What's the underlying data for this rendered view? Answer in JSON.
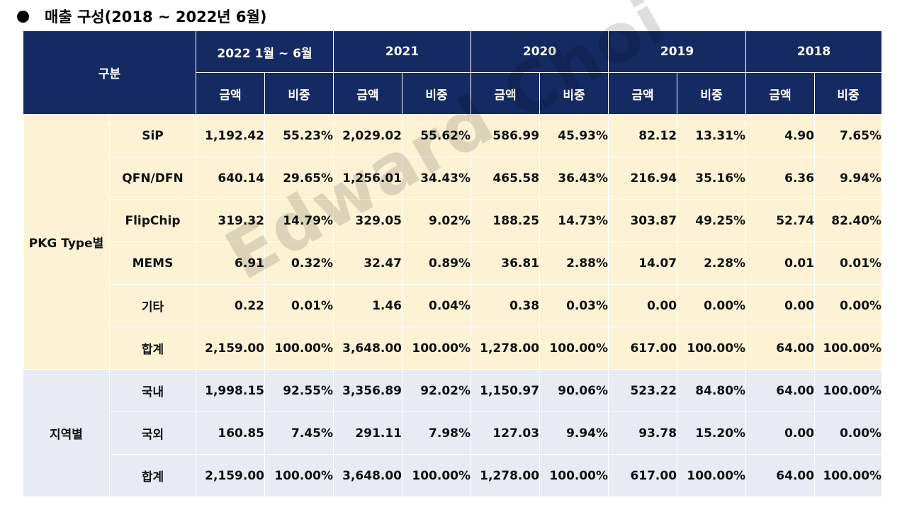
{
  "title": "매출 구성(2018 ~ 2022년 6월)",
  "watermark": "Edward Choi",
  "header": {
    "category": "구분",
    "periods": [
      "2022 1월 ~ 6월",
      "2021",
      "2020",
      "2019",
      "2018"
    ],
    "amount_label": "금액",
    "share_label": "비중"
  },
  "groups": [
    {
      "label": "PKG Type별",
      "rows": [
        {
          "item": "SiP",
          "values": [
            "1,192.42",
            "55.23%",
            "2,029.02",
            "55.62%",
            "586.99",
            "45.93%",
            "82.12",
            "13.31%",
            "4.90",
            "7.65%"
          ]
        },
        {
          "item": "QFN/DFN",
          "values": [
            "640.14",
            "29.65%",
            "1,256.01",
            "34.43%",
            "465.58",
            "36.43%",
            "216.94",
            "35.16%",
            "6.36",
            "9.94%"
          ]
        },
        {
          "item": "FlipChip",
          "values": [
            "319.32",
            "14.79%",
            "329.05",
            "9.02%",
            "188.25",
            "14.73%",
            "303.87",
            "49.25%",
            "52.74",
            "82.40%"
          ]
        },
        {
          "item": "MEMS",
          "values": [
            "6.91",
            "0.32%",
            "32.47",
            "0.89%",
            "36.81",
            "2.88%",
            "14.07",
            "2.28%",
            "0.01",
            "0.01%"
          ]
        },
        {
          "item": "기타",
          "values": [
            "0.22",
            "0.01%",
            "1.46",
            "0.04%",
            "0.38",
            "0.03%",
            "0.00",
            "0.00%",
            "0.00",
            "0.00%"
          ]
        },
        {
          "item": "합계",
          "values": [
            "2,159.00",
            "100.00%",
            "3,648.00",
            "100.00%",
            "1,278.00",
            "100.00%",
            "617.00",
            "100.00%",
            "64.00",
            "100.00%"
          ]
        }
      ]
    },
    {
      "label": "지역별",
      "rows": [
        {
          "item": "국내",
          "values": [
            "1,998.15",
            "92.55%",
            "3,356.89",
            "92.02%",
            "1,150.97",
            "90.06%",
            "523.22",
            "84.80%",
            "64.00",
            "100.00%"
          ]
        },
        {
          "item": "국외",
          "values": [
            "160.85",
            "7.45%",
            "291.11",
            "7.98%",
            "127.03",
            "9.94%",
            "93.78",
            "15.20%",
            "0.00",
            "0.00%"
          ]
        },
        {
          "item": "합계",
          "values": [
            "2,159.00",
            "100.00%",
            "3,648.00",
            "100.00%",
            "1,278.00",
            "100.00%",
            "617.00",
            "100.00%",
            "64.00",
            "100.00%"
          ]
        }
      ]
    }
  ]
}
